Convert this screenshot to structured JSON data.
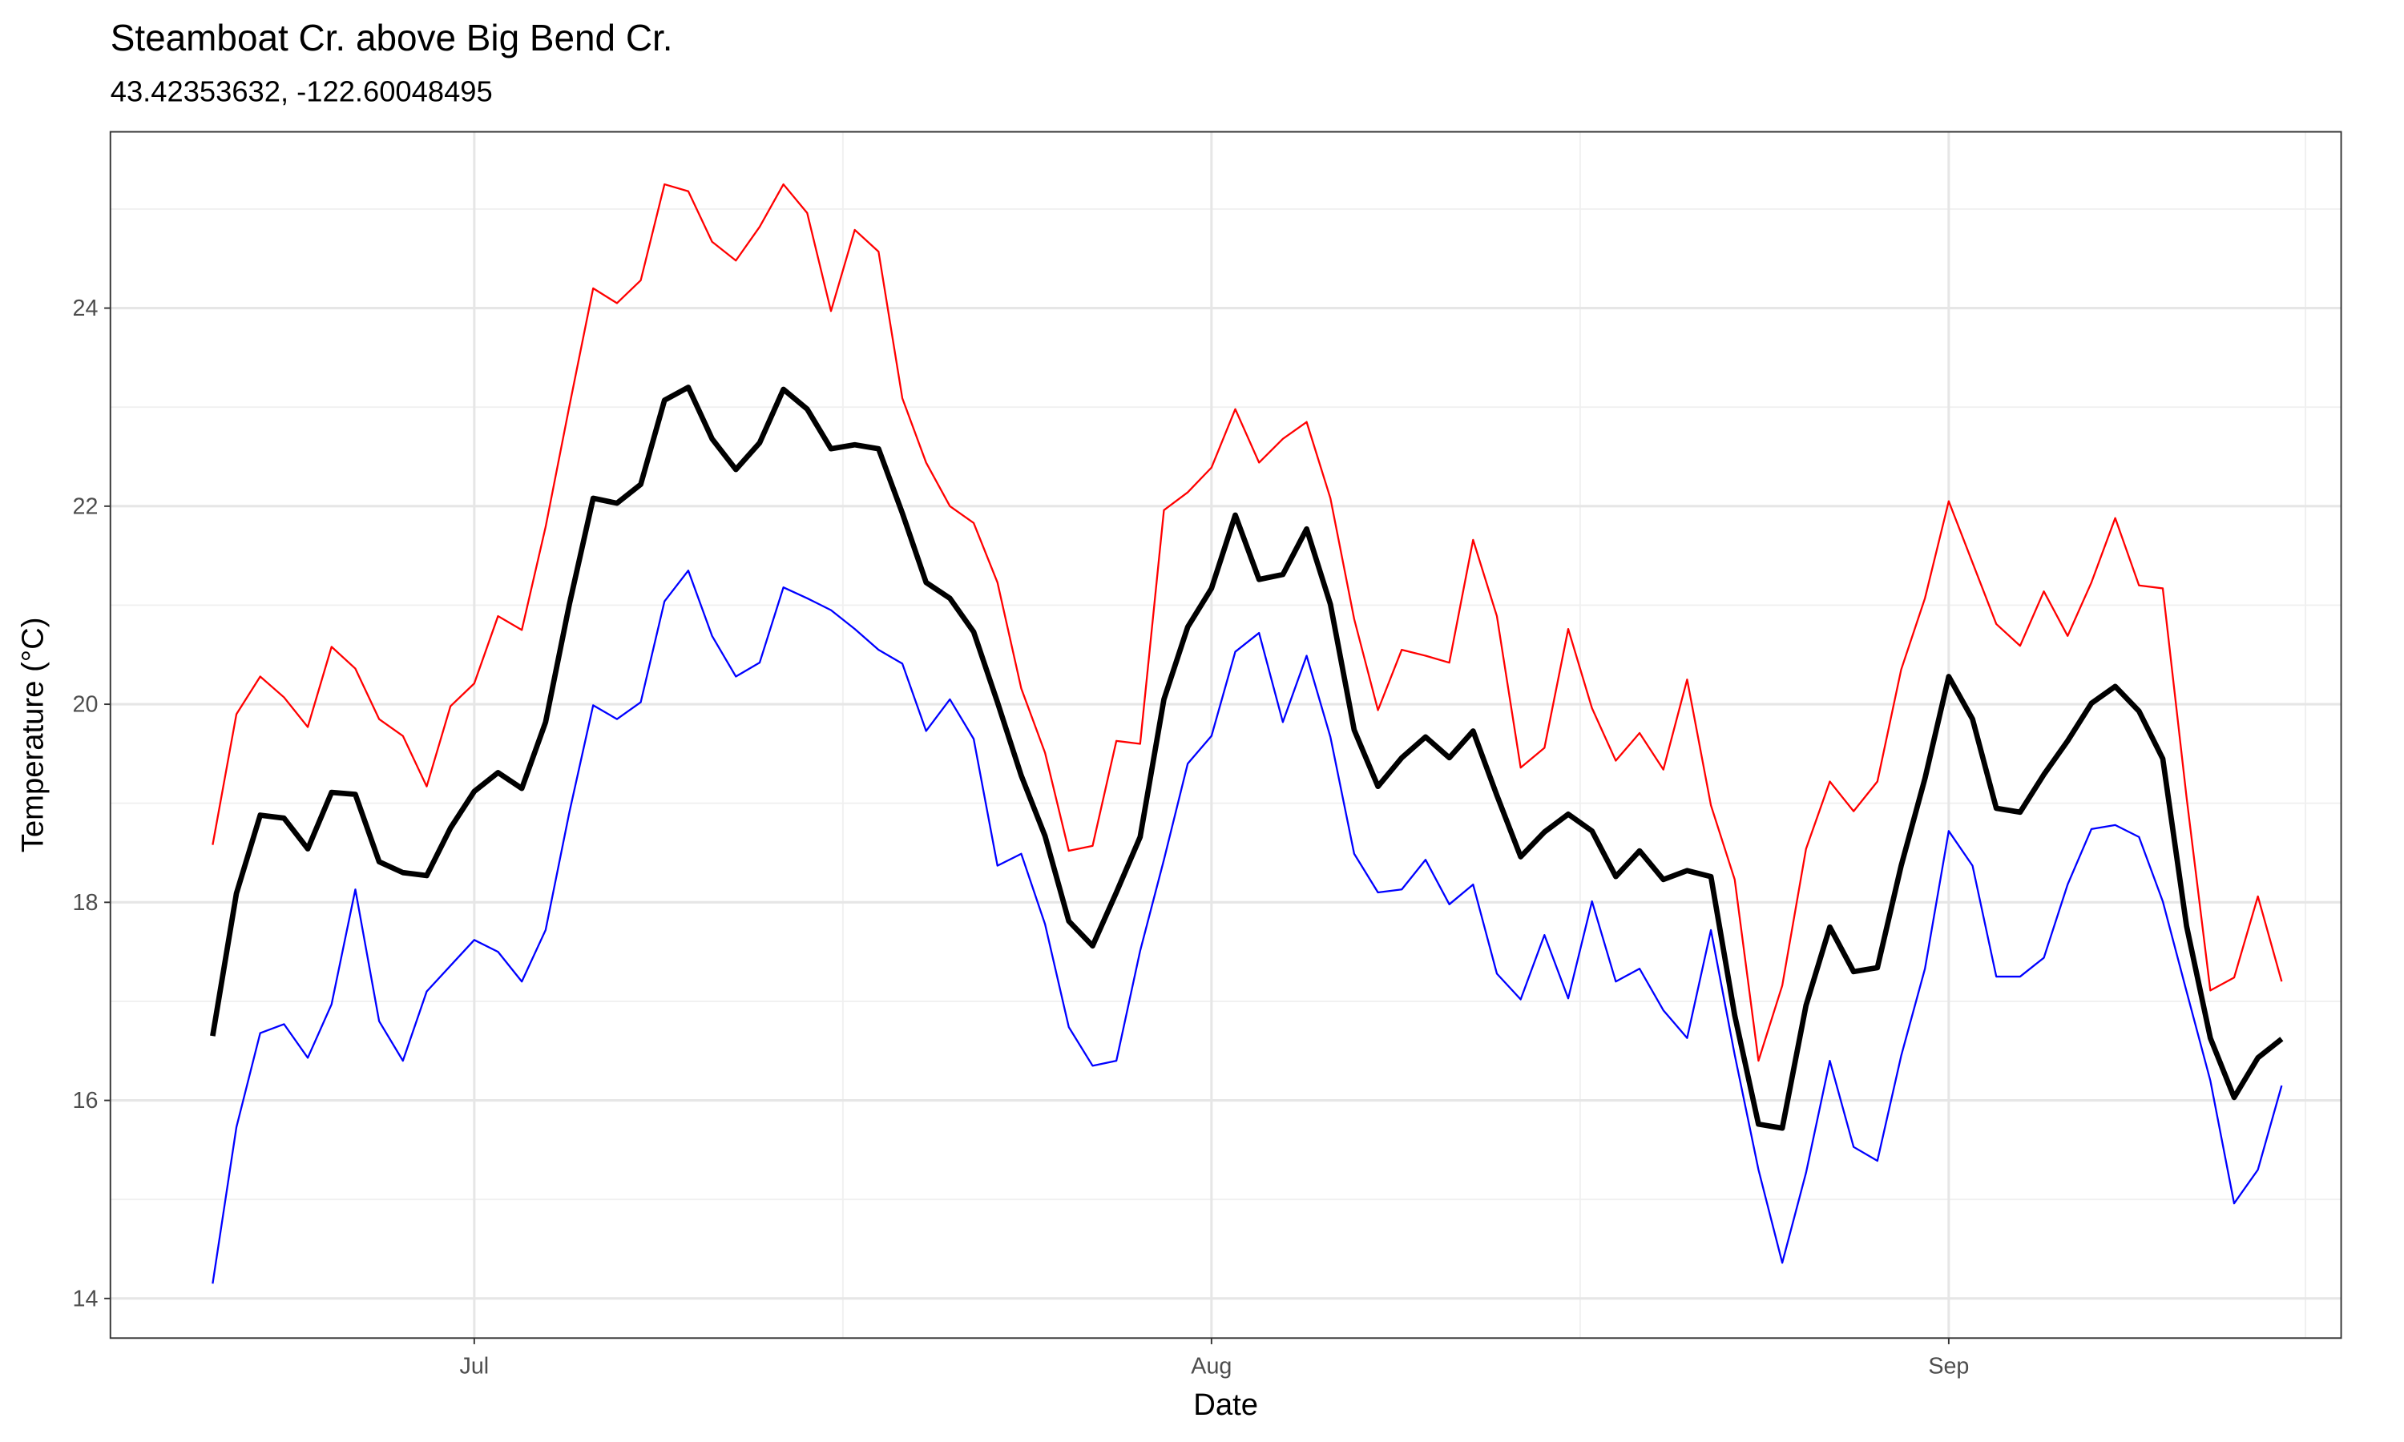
{
  "chart_data": {
    "type": "line",
    "title": "Steamboat Cr. above Big Bend Cr.",
    "subtitle": "43.42353632, -122.60048495",
    "x_label": "Date",
    "y_label": "Temperature (°C)",
    "x": [
      171,
      172,
      173,
      174,
      175,
      176,
      177,
      178,
      179,
      180,
      181,
      182,
      183,
      184,
      185,
      186,
      187,
      188,
      189,
      190,
      191,
      192,
      193,
      194,
      195,
      196,
      197,
      198,
      199,
      200,
      201,
      202,
      203,
      204,
      205,
      206,
      207,
      208,
      209,
      210,
      211,
      212,
      213,
      214,
      215,
      216,
      217,
      218,
      219,
      220,
      221,
      222,
      223,
      224,
      225,
      226,
      227,
      228,
      229,
      230,
      231,
      232,
      233,
      234,
      235,
      236,
      237,
      238,
      239,
      240,
      241,
      242,
      243,
      244,
      245,
      246,
      247,
      248,
      249,
      250,
      251,
      252,
      253,
      254,
      255,
      256,
      257,
      258
    ],
    "series": [
      {
        "color": "#ff0000",
        "width": 1.2,
        "values": [
          18.58,
          19.9,
          20.28,
          20.07,
          19.77,
          20.58,
          20.36,
          19.85,
          19.68,
          19.17,
          19.98,
          20.21,
          20.89,
          20.75,
          21.79,
          23.01,
          24.2,
          24.05,
          24.28,
          25.25,
          25.18,
          24.67,
          24.48,
          24.82,
          25.25,
          24.96,
          23.97,
          24.79,
          24.57,
          23.09,
          22.44,
          22.0,
          21.83,
          21.23,
          20.16,
          19.51,
          18.52,
          18.57,
          19.63,
          19.6,
          21.96,
          22.14,
          22.39,
          22.98,
          22.44,
          22.68,
          22.85,
          22.08,
          20.86,
          19.94,
          20.55,
          20.49,
          20.42,
          21.66,
          20.89,
          19.36,
          19.56,
          20.76,
          19.96,
          19.43,
          19.71,
          19.34,
          20.25,
          18.98,
          18.23,
          16.4,
          17.16,
          18.54,
          19.22,
          18.92,
          19.22,
          20.35,
          21.07,
          22.05,
          21.43,
          20.81,
          20.59,
          21.14,
          20.69,
          21.23,
          21.88,
          21.2,
          21.17,
          19.06,
          17.11,
          17.24,
          18.06,
          17.2
        ]
      },
      {
        "color": "#000000",
        "width": 3.5,
        "values": [
          16.65,
          18.09,
          18.88,
          18.85,
          18.54,
          19.11,
          19.09,
          18.41,
          18.3,
          18.27,
          18.75,
          19.12,
          19.31,
          19.15,
          19.82,
          21.01,
          22.08,
          22.03,
          22.22,
          23.07,
          23.2,
          22.68,
          22.37,
          22.64,
          23.18,
          22.98,
          22.58,
          22.62,
          22.58,
          21.93,
          21.23,
          21.07,
          20.73,
          20.02,
          19.28,
          18.67,
          17.81,
          17.56,
          18.1,
          18.66,
          20.05,
          20.78,
          21.17,
          21.91,
          21.26,
          21.31,
          21.77,
          21.01,
          19.74,
          19.17,
          19.46,
          19.67,
          19.46,
          19.73,
          19.08,
          18.46,
          18.71,
          18.89,
          18.72,
          18.26,
          18.52,
          18.23,
          18.32,
          18.26,
          16.86,
          15.76,
          15.72,
          16.96,
          17.75,
          17.3,
          17.34,
          18.37,
          19.25,
          20.28,
          19.85,
          18.95,
          18.91,
          19.29,
          19.63,
          20.01,
          20.18,
          19.93,
          19.45,
          17.76,
          16.63,
          16.03,
          16.43,
          16.62
        ]
      },
      {
        "color": "#0000ff",
        "width": 1.2,
        "values": [
          14.15,
          15.73,
          16.68,
          16.77,
          16.43,
          16.97,
          18.13,
          16.8,
          16.4,
          17.1,
          17.36,
          17.62,
          17.5,
          17.2,
          17.72,
          18.91,
          19.99,
          19.85,
          20.02,
          21.04,
          21.35,
          20.69,
          20.28,
          20.42,
          21.18,
          21.07,
          20.95,
          20.76,
          20.55,
          20.41,
          19.73,
          20.05,
          19.65,
          18.37,
          18.49,
          17.78,
          16.74,
          16.35,
          16.4,
          17.51,
          18.43,
          19.4,
          19.68,
          20.53,
          20.72,
          19.82,
          20.49,
          19.67,
          18.49,
          18.1,
          18.13,
          18.43,
          17.98,
          18.18,
          17.28,
          17.02,
          17.67,
          17.03,
          18.01,
          17.2,
          17.33,
          16.91,
          16.63,
          17.72,
          16.46,
          15.3,
          14.36,
          15.27,
          16.4,
          15.53,
          15.39,
          16.45,
          17.33,
          18.72,
          18.37,
          17.25,
          17.25,
          17.44,
          18.18,
          18.74,
          18.78,
          18.66,
          18.01,
          17.1,
          16.2,
          14.96,
          15.3,
          16.15
        ]
      }
    ],
    "xlim": [
      166.7,
      260.5
    ],
    "xticks": [
      {
        "value": 182,
        "label": "Jul"
      },
      {
        "value": 213,
        "label": "Aug"
      },
      {
        "value": 244,
        "label": "Sep"
      }
    ],
    "xminor": [
      197.5,
      228.5,
      259
    ],
    "ylim": [
      13.6,
      25.78
    ],
    "yticks": [
      14,
      16,
      18,
      20,
      22,
      24
    ],
    "yminor": [
      15,
      17,
      19,
      21,
      23,
      25
    ],
    "grid": true
  }
}
